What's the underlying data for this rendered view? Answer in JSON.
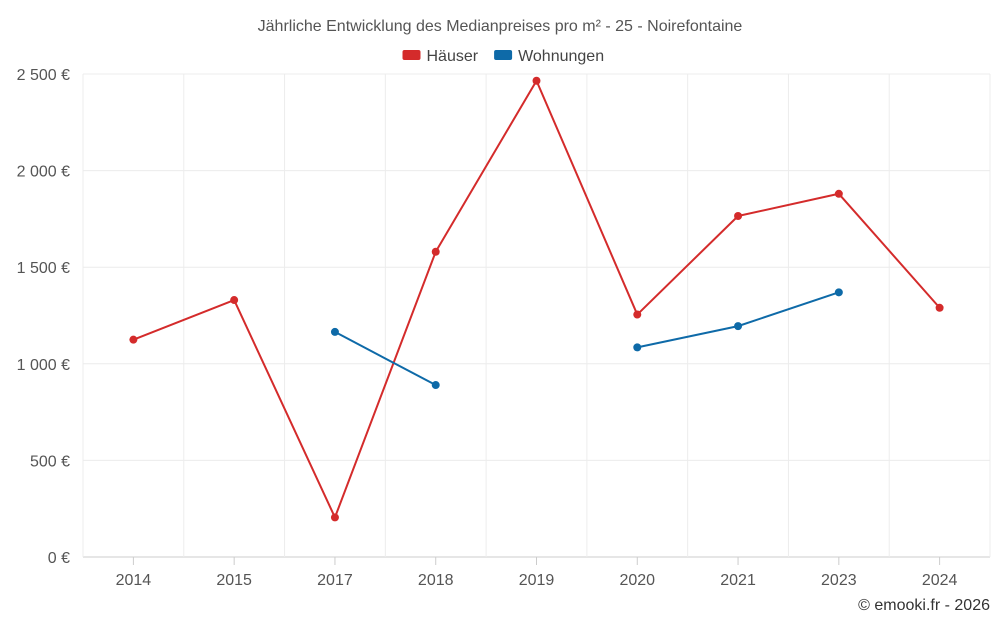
{
  "chart_data": {
    "type": "line",
    "title": "Jährliche Entwicklung des Medianpreises pro m² - 25 - Noirefontaine",
    "categories": [
      "2014",
      "2015",
      "2017",
      "2018",
      "2019",
      "2020",
      "2021",
      "2023",
      "2024"
    ],
    "series": [
      {
        "name": "Häuser",
        "color": "#d42b2b",
        "values": [
          1125,
          1330,
          205,
          1580,
          2465,
          1255,
          1765,
          1880,
          1290
        ]
      },
      {
        "name": "Wohnungen",
        "color": "#0e6aa8",
        "values": [
          null,
          null,
          1165,
          890,
          null,
          1085,
          1195,
          1370,
          null
        ]
      }
    ],
    "ylim": [
      0,
      2500
    ],
    "yticks": [
      0,
      500,
      1000,
      1500,
      2000,
      2500
    ],
    "ytick_labels": [
      "0 €",
      "500 €",
      "1 000 €",
      "1 500 €",
      "2 000 €",
      "2 500 €"
    ],
    "grid": true,
    "legend_position": "top-center",
    "credit": "© emooki.fr - 2026"
  }
}
